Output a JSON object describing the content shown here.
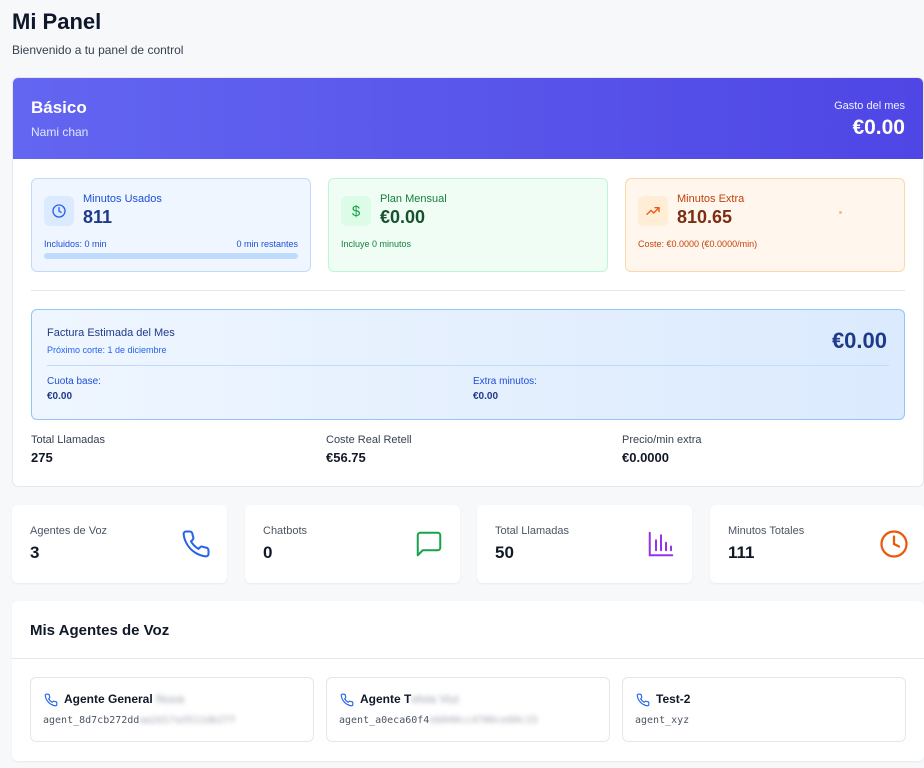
{
  "page": {
    "title": "Mi Panel",
    "subtitle": "Bienvenido a tu panel de control"
  },
  "plan": {
    "name": "Básico",
    "user": "Nami chan",
    "spend_label": "Gasto del mes",
    "spend_value": "€0.00"
  },
  "usage": {
    "minutes": {
      "label": "Minutos Usados",
      "value": "811",
      "included": "Incluidos: 0 min",
      "remaining": "0 min restantes",
      "progress": 0,
      "icon": "clock-icon"
    },
    "monthly": {
      "label": "Plan Mensual",
      "value": "€0.00",
      "note": "Incluye 0 minutos",
      "icon": "dollar-icon"
    },
    "extra": {
      "label": "Minutos Extra",
      "value": "810.65",
      "note": "Coste: €0.0000 (€0.0000/min)",
      "icon": "trending-up-icon"
    }
  },
  "invoice": {
    "title": "Factura Estimada del Mes",
    "cut": "Próximo corte: 1 de diciembre",
    "total": "€0.00",
    "base_label": "Cuota base:",
    "base_value": "€0.00",
    "extra_label": "Extra minutos:",
    "extra_value": "€0.00"
  },
  "summary": [
    {
      "label": "Total Llamadas",
      "value": "275"
    },
    {
      "label": "Coste Real Retell",
      "value": "€56.75"
    },
    {
      "label": "Precio/min extra",
      "value": "€0.0000"
    }
  ],
  "metrics": [
    {
      "label": "Agentes de Voz",
      "value": "3",
      "icon": "phone-icon",
      "color": "#2563eb"
    },
    {
      "label": "Chatbots",
      "value": "0",
      "icon": "chat-icon",
      "color": "#16a34a"
    },
    {
      "label": "Total Llamadas",
      "value": "50",
      "icon": "bar-chart-icon",
      "color": "#9333ea"
    },
    {
      "label": "Minutos Totales",
      "value": "111",
      "icon": "clock-icon",
      "color": "#ea580c"
    }
  ],
  "agents": {
    "title": "Mis Agentes de Voz",
    "items": [
      {
        "name": "Agente General",
        "name_hidden": "Nuva",
        "id": "agent_8d7cb272dd",
        "id_hidden": "aa2d17a3511db27f"
      },
      {
        "name": "Agente T",
        "name_hidden": "elvia Voz",
        "id": "agent_a0eca60f4",
        "id_hidden": "eb040cc4706ce60c15"
      },
      {
        "name": "Test-2",
        "name_hidden": "",
        "id": "agent_xyz",
        "id_hidden": ""
      }
    ]
  },
  "colors": {
    "header_gradient_start": "#6366f1",
    "header_gradient_end": "#4f46e5"
  }
}
